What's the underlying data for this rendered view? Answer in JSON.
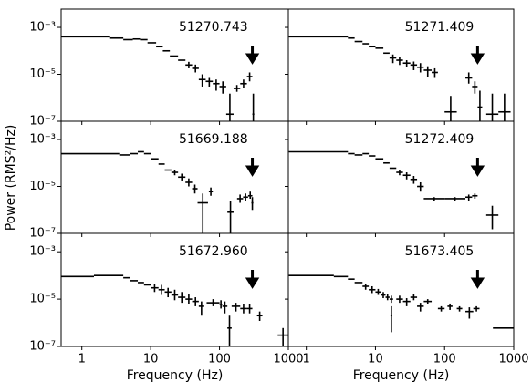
{
  "ylabel": "Power (RMS²/Hz)",
  "chart_data": [
    {
      "type": "errorbar",
      "label": "51270.743",
      "xscale": "log",
      "yscale": "log",
      "color": "#000000",
      "xlim": [
        0.5,
        1000
      ],
      "ylim": [
        1e-07,
        0.006
      ],
      "show_xtick_labels": false,
      "show_ytick_labels": true,
      "xticks": [
        1,
        10,
        100,
        1000
      ],
      "yticks": [
        {
          "value": 0.001,
          "label": "10⁻³"
        },
        {
          "value": 1e-05,
          "label": "10⁻⁵"
        },
        {
          "value": 1e-07,
          "label": "10⁻⁷"
        }
      ],
      "arrow_x": 300,
      "x_low": [
        0.5,
        2.5,
        4,
        5.5,
        7,
        9,
        12,
        15,
        19,
        25,
        32,
        40,
        50,
        63,
        80,
        100,
        125,
        160,
        200,
        250,
        300
      ],
      "x_high": [
        2.5,
        4,
        5.5,
        7,
        9,
        12,
        15,
        19,
        25,
        32,
        40,
        50,
        63,
        80,
        100,
        125,
        160,
        200,
        250,
        300,
        320
      ],
      "values": [
        0.0004,
        0.00035,
        0.0003,
        0.00032,
        0.0003,
        0.00022,
        0.00015,
        0.0001,
        6e-05,
        4e-05,
        2.5e-05,
        1.8e-05,
        6e-06,
        5e-06,
        4e-06,
        3e-06,
        2e-07,
        2.5e-06,
        4e-06,
        8e-06,
        2e-07
      ],
      "y_low": [
        null,
        null,
        null,
        null,
        null,
        null,
        null,
        null,
        null,
        null,
        1.8e-05,
        1.2e-05,
        3e-06,
        3e-06,
        2e-06,
        1.5e-06,
        1e-07,
        1.8e-06,
        2.5e-06,
        5e-06,
        1e-07
      ],
      "y_high": [
        null,
        null,
        null,
        null,
        null,
        null,
        null,
        null,
        null,
        null,
        3.4e-05,
        2.6e-05,
        1e-05,
        7e-06,
        6e-06,
        5e-06,
        1.5e-06,
        3.5e-06,
        6e-06,
        1.2e-05,
        1.5e-06
      ]
    },
    {
      "type": "errorbar",
      "label": "51271.409",
      "xscale": "log",
      "yscale": "log",
      "color": "#000000",
      "xlim": [
        0.55,
        1000
      ],
      "ylim": [
        1e-07,
        0.006
      ],
      "show_xtick_labels": false,
      "show_ytick_labels": false,
      "xticks": [
        1,
        10,
        100,
        1000
      ],
      "yticks": [
        0.001,
        1e-05,
        1e-07
      ],
      "arrow_x": 300,
      "x_low": [
        0.56,
        4,
        5,
        6.5,
        8,
        10,
        13,
        16,
        20,
        25,
        32,
        40,
        50,
        65,
        100,
        200,
        250,
        300,
        400,
        600
      ],
      "x_high": [
        4,
        5,
        6.5,
        8,
        10,
        13,
        16,
        20,
        25,
        32,
        40,
        50,
        65,
        80,
        150,
        250,
        300,
        350,
        600,
        900
      ],
      "values": [
        0.0004,
        0.00035,
        0.00025,
        0.0002,
        0.00015,
        0.00013,
        8e-05,
        5e-05,
        4e-05,
        3e-05,
        2.5e-05,
        2e-05,
        1.5e-05,
        1.2e-05,
        2.5e-07,
        7e-06,
        3e-06,
        4e-07,
        2e-07,
        2.5e-07
      ],
      "y_low": [
        null,
        null,
        null,
        null,
        null,
        null,
        null,
        3e-05,
        2.5e-05,
        2e-05,
        1.5e-05,
        1.2e-05,
        8e-06,
        7e-06,
        1e-07,
        4e-06,
        1.5e-06,
        1e-07,
        1e-07,
        1e-07
      ],
      "y_high": [
        null,
        null,
        null,
        null,
        null,
        null,
        null,
        7e-05,
        5.5e-05,
        4e-05,
        3.5e-05,
        3e-05,
        2.2e-05,
        1.8e-05,
        1.2e-06,
        1.2e-05,
        5e-06,
        2e-06,
        1.5e-06,
        1.5e-06
      ]
    },
    {
      "type": "errorbar",
      "label": "51669.188",
      "xscale": "log",
      "yscale": "log",
      "color": "#000000",
      "xlim": [
        0.5,
        1000
      ],
      "ylim": [
        1e-07,
        0.006
      ],
      "show_xtick_labels": false,
      "show_ytick_labels": true,
      "xticks": [
        1,
        10,
        100,
        1000
      ],
      "yticks": [
        {
          "value": 0.001,
          "label": "10⁻³"
        },
        {
          "value": 1e-05,
          "label": "10⁻⁵"
        },
        {
          "value": 1e-07,
          "label": "10⁻⁷"
        }
      ],
      "arrow_x": 300,
      "x_low": [
        0.5,
        3.5,
        5,
        6.5,
        8,
        10,
        13,
        16,
        20,
        25,
        32,
        40,
        48,
        70,
        130,
        180,
        220,
        260,
        290
      ],
      "x_high": [
        3.5,
        5,
        6.5,
        8,
        10,
        13,
        16,
        20,
        25,
        32,
        40,
        48,
        68,
        80,
        160,
        220,
        260,
        300,
        310
      ],
      "values": [
        0.00025,
        0.00022,
        0.00025,
        0.0003,
        0.00025,
        0.00015,
        9e-05,
        5e-05,
        4e-05,
        2.5e-05,
        1.5e-05,
        8e-06,
        2e-06,
        6e-06,
        8e-07,
        3e-06,
        3.5e-06,
        4e-06,
        2e-06
      ],
      "y_low": [
        null,
        null,
        null,
        null,
        null,
        null,
        null,
        null,
        3e-05,
        1.8e-05,
        1e-05,
        5e-06,
        1e-07,
        4e-06,
        1e-07,
        2e-06,
        2.5e-06,
        3e-06,
        1e-06
      ],
      "y_high": [
        null,
        null,
        null,
        null,
        null,
        null,
        null,
        null,
        5e-05,
        3.5e-05,
        2.2e-05,
        1.2e-05,
        5e-06,
        9e-06,
        2.5e-06,
        4.5e-06,
        5e-06,
        6e-06,
        3.5e-06
      ]
    },
    {
      "type": "errorbar",
      "label": "51272.409",
      "xscale": "log",
      "yscale": "log",
      "color": "#000000",
      "xlim": [
        0.55,
        1000
      ],
      "ylim": [
        1e-07,
        0.006
      ],
      "show_xtick_labels": false,
      "show_ytick_labels": false,
      "xticks": [
        1,
        10,
        100,
        1000
      ],
      "yticks": [
        0.001,
        1e-05,
        1e-07
      ],
      "arrow_x": 300,
      "x_low": [
        0.56,
        4,
        5,
        6.5,
        8,
        10,
        13,
        16,
        20,
        25,
        32,
        40,
        50,
        100,
        200,
        250,
        400
      ],
      "x_high": [
        4,
        5,
        6.5,
        8,
        10,
        13,
        16,
        20,
        25,
        32,
        40,
        50,
        100,
        200,
        250,
        300,
        600
      ],
      "values": [
        0.0003,
        0.00025,
        0.00022,
        0.00025,
        0.0002,
        0.00015,
        0.0001,
        6e-05,
        4e-05,
        3e-05,
        2e-05,
        1e-05,
        3e-06,
        3e-06,
        3.5e-06,
        4e-06,
        6e-07
      ],
      "y_low": [
        null,
        null,
        null,
        null,
        null,
        null,
        null,
        null,
        3e-05,
        2e-05,
        1.3e-05,
        6e-06,
        2.5e-06,
        2.5e-06,
        2.5e-06,
        3e-06,
        1.5e-07
      ],
      "y_high": [
        null,
        null,
        null,
        null,
        null,
        null,
        null,
        null,
        5e-05,
        4e-05,
        2.8e-05,
        1.5e-05,
        3.5e-06,
        3.5e-06,
        4.5e-06,
        5e-06,
        1.5e-06
      ]
    },
    {
      "type": "errorbar",
      "label": "51672.960",
      "xscale": "log",
      "yscale": "log",
      "color": "#000000",
      "xlim": [
        0.5,
        1000
      ],
      "ylim": [
        1e-07,
        0.006
      ],
      "show_xtick_labels": true,
      "show_ytick_labels": true,
      "xlabel": "Frequency (Hz)",
      "xticks": [
        1,
        10,
        100,
        1000
      ],
      "yticks": [
        {
          "value": 0.001,
          "label": "10⁻³"
        },
        {
          "value": 1e-05,
          "label": "10⁻⁵"
        },
        {
          "value": 1e-07,
          "label": "10⁻⁷"
        }
      ],
      "arrow_x": 300,
      "x_low": [
        0.5,
        1.5,
        4,
        5,
        6.5,
        8,
        10,
        13,
        16,
        20,
        25,
        32,
        40,
        50,
        65,
        100,
        110,
        130,
        150,
        200,
        250,
        350,
        700
      ],
      "x_high": [
        1.5,
        4,
        5,
        6.5,
        8,
        10,
        13,
        16,
        20,
        25,
        32,
        40,
        50,
        60,
        100,
        110,
        130,
        150,
        200,
        250,
        300,
        420,
        1000
      ],
      "values": [
        9e-05,
        0.0001,
        8e-05,
        6e-05,
        5e-05,
        4e-05,
        3e-05,
        2.5e-05,
        2e-05,
        1.5e-05,
        1.2e-05,
        1e-05,
        8e-06,
        5e-06,
        7e-06,
        6e-06,
        5e-06,
        6e-07,
        5e-06,
        4e-06,
        4e-06,
        2e-06,
        3e-07
      ],
      "y_low": [
        null,
        null,
        null,
        null,
        null,
        null,
        2e-05,
        1.5e-05,
        1.2e-05,
        9e-06,
        7e-06,
        6e-06,
        5e-06,
        2e-06,
        5e-06,
        4e-06,
        2.5e-06,
        1e-07,
        3e-06,
        2.5e-06,
        2.5e-06,
        1.2e-06,
        1e-07
      ],
      "y_high": [
        null,
        null,
        null,
        null,
        null,
        null,
        4.5e-05,
        4e-05,
        3e-05,
        2.5e-05,
        2e-05,
        1.6e-05,
        1.2e-05,
        8e-06,
        1e-05,
        9e-06,
        8e-06,
        2e-06,
        7e-06,
        6e-06,
        6e-06,
        3e-06,
        6e-07
      ]
    },
    {
      "type": "errorbar",
      "label": "51673.405",
      "xscale": "log",
      "yscale": "log",
      "color": "#000000",
      "xlim": [
        0.55,
        1000
      ],
      "ylim": [
        1e-07,
        0.006
      ],
      "show_xtick_labels": true,
      "show_ytick_labels": false,
      "xlabel": "Frequency (Hz)",
      "xticks": [
        1,
        10,
        100,
        1000
      ],
      "yticks": [
        0.001,
        1e-05,
        1e-07
      ],
      "arrow_x": 300,
      "x_low": [
        0.56,
        2.5,
        4,
        5,
        6.5,
        8,
        10,
        12,
        14,
        16,
        16.5,
        20,
        25,
        32,
        40,
        50,
        80,
        110,
        150,
        200,
        260,
        500
      ],
      "x_high": [
        2.5,
        4,
        5,
        6.5,
        8,
        10,
        12,
        14,
        16,
        18,
        17.5,
        25,
        32,
        40,
        50,
        65,
        100,
        130,
        180,
        260,
        320,
        1000
      ],
      "values": [
        0.0001,
        9e-05,
        7e-05,
        5e-05,
        3.5e-05,
        2.5e-05,
        2e-05,
        1.5e-05,
        1.2e-05,
        1e-05,
        2e-06,
        1e-05,
        8e-06,
        1.2e-05,
        5e-06,
        8e-06,
        4e-06,
        5e-06,
        4e-06,
        3e-06,
        4e-06,
        6e-07
      ],
      "y_low": [
        null,
        null,
        null,
        null,
        2.5e-05,
        1.8e-05,
        1.5e-05,
        1.1e-05,
        9e-06,
        7e-06,
        4e-07,
        7e-06,
        5e-06,
        9e-06,
        3e-06,
        6e-06,
        3e-06,
        3.5e-06,
        3e-06,
        1.5e-06,
        3e-06,
        null
      ],
      "y_high": [
        null,
        null,
        null,
        null,
        4.5e-05,
        3.5e-05,
        2.7e-05,
        2e-05,
        1.6e-05,
        1.4e-05,
        5e-06,
        1.4e-05,
        1.1e-05,
        1.6e-05,
        7e-06,
        1e-05,
        5e-06,
        6.5e-06,
        5e-06,
        4.5e-06,
        5e-06,
        null
      ]
    }
  ]
}
